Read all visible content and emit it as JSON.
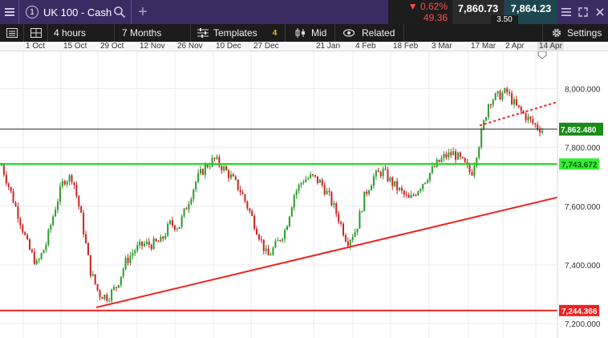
{
  "header": {
    "instrument_index": "1",
    "instrument_name": "UK 100 - Cash",
    "change_pct": "▼ 0.62%",
    "change_pts": "49.36",
    "sell_price": "7,860.73",
    "buy_price": "7,864.23",
    "spread": "3.50"
  },
  "toolbar": {
    "interval": "4 hours",
    "range": "7 Months",
    "templates_label": "Templates",
    "templates_count": "4",
    "price_type": "Mid",
    "related_label": "Related",
    "settings_label": "Settings"
  },
  "colors": {
    "header_bg": "#3a2c63",
    "up_candle": "#2a9a2a",
    "down_candle": "#cc2222",
    "support_green": "#00dd00",
    "trend_red": "#ee2222"
  },
  "chart_data": {
    "type": "candlestick",
    "x_labels": [
      "1 Oct",
      "15 Oct",
      "29 Oct",
      "12 Nov",
      "26 Nov",
      "10 Dec",
      "27 Dec",
      "21 Jan",
      "4 Feb",
      "18 Feb",
      "3 Mar",
      "17 Mar",
      "2 Apr",
      "14 Apr"
    ],
    "y_labels": [
      "8,000.000",
      "7,800.000",
      "7,600.000",
      "7,400.000",
      "7,200.000"
    ],
    "ylim": [
      7170,
      8100
    ],
    "current_price": "7,862.480",
    "horizontal_levels": [
      {
        "label": "7,743.672",
        "value": 7743.672,
        "color": "#00dd00"
      },
      {
        "label": "7,244.366",
        "value": 7244.366,
        "color": "#ee2222"
      }
    ],
    "trendline_rising": {
      "start": [
        "29 Oct",
        7255
      ],
      "end": [
        "14 Apr",
        7630
      ]
    },
    "trendline_dotted": {
      "start": [
        "17 Mar",
        7875
      ],
      "end": [
        "14 Apr",
        7955
      ]
    },
    "price_path": [
      7740,
      7650,
      7560,
      7460,
      7400,
      7470,
      7590,
      7690,
      7700,
      7560,
      7380,
      7300,
      7290,
      7330,
      7410,
      7450,
      7470,
      7470,
      7480,
      7540,
      7530,
      7610,
      7690,
      7735,
      7760,
      7730,
      7695,
      7650,
      7580,
      7505,
      7425,
      7470,
      7520,
      7640,
      7690,
      7700,
      7680,
      7630,
      7560,
      7480,
      7520,
      7640,
      7700,
      7720,
      7680,
      7650,
      7620,
      7660,
      7700,
      7740,
      7770,
      7780,
      7750,
      7710,
      7830,
      7960,
      7975,
      7990,
      7940,
      7910,
      7880,
      7860
    ]
  }
}
